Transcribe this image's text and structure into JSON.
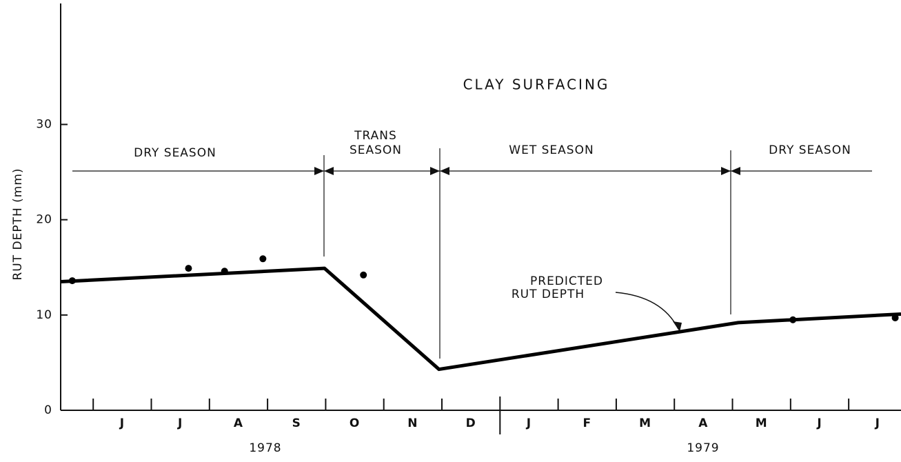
{
  "chart_data": {
    "type": "line",
    "title": "CLAY SURFACING",
    "y_label": "RUT DEPTH (mm)",
    "categories": [
      "J",
      "J",
      "A",
      "S",
      "O",
      "N",
      "D",
      "J",
      "F",
      "M",
      "A",
      "M",
      "J",
      "J"
    ],
    "years": [
      "1978",
      "1979"
    ],
    "seasons": [
      "DRY SEASON",
      [
        "TRANS",
        "SEASON"
      ],
      "WET SEASON",
      "DRY SEASON"
    ],
    "annotation": [
      "PREDICTED",
      "RUT DEPTH"
    ],
    "color": "#000000",
    "xlim": [
      -0.56,
      13.9
    ],
    "ylim": [
      0,
      42.7
    ],
    "yticks": [
      0,
      10,
      20,
      30
    ],
    "grid": false,
    "line": {
      "x": [
        -0.56,
        3.98,
        5.95,
        11.1,
        13.9
      ],
      "y": [
        13.5,
        14.9,
        4.3,
        9.2,
        10.1
      ]
    },
    "points": {
      "x": [
        -0.36,
        1.64,
        2.26,
        2.92,
        4.65,
        12.04,
        13.8
      ],
      "y": [
        13.6,
        14.9,
        14.6,
        15.9,
        14.2,
        9.5,
        9.7
      ]
    }
  }
}
